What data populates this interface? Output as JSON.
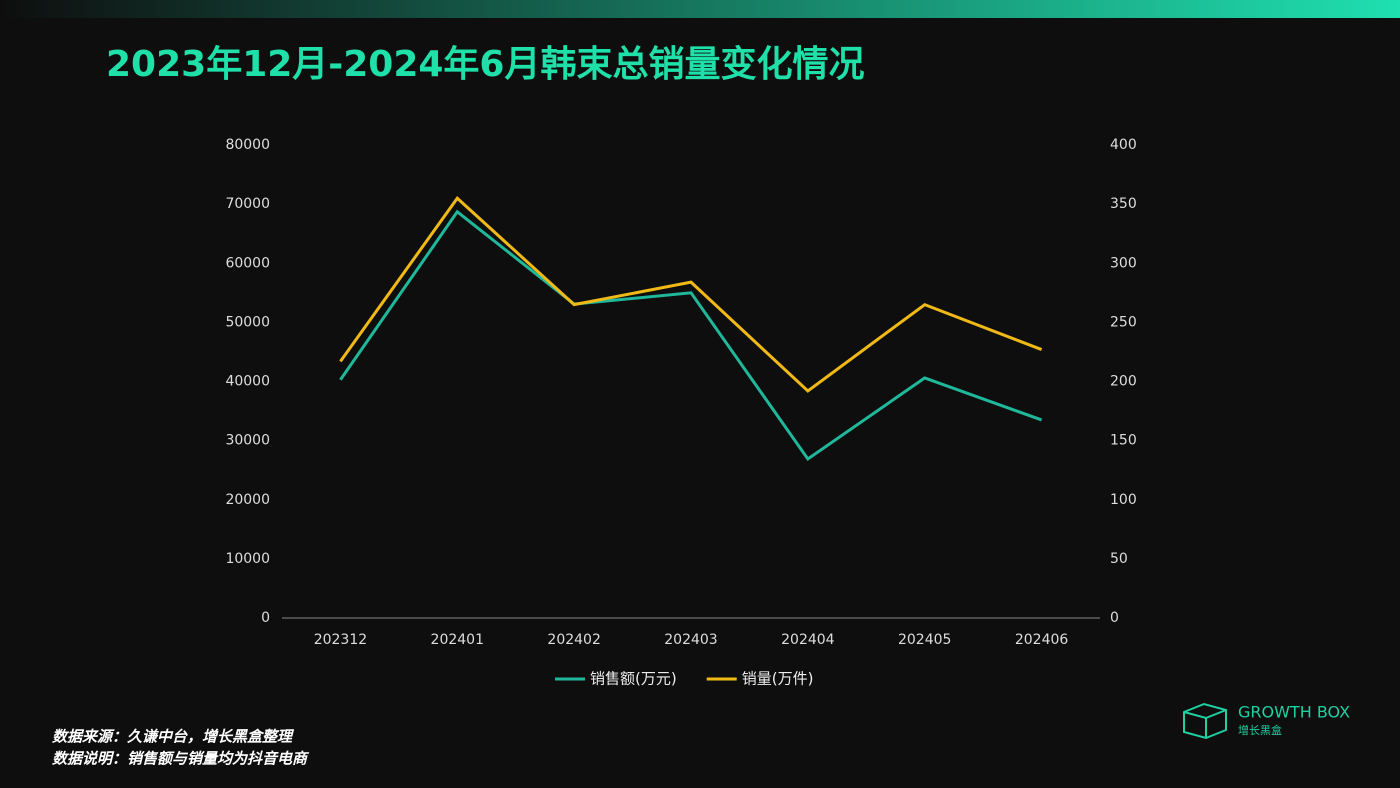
{
  "chart_data": {
    "type": "line",
    "title": "2023年12月-2024年6月韩束总销量变化情况",
    "categories": [
      "202312",
      "202401",
      "202402",
      "202403",
      "202404",
      "202405",
      "202406"
    ],
    "series": [
      {
        "name": "销售额(万元)",
        "color": "#1fb89a",
        "values": [
          40300,
          68700,
          53100,
          55000,
          26900,
          40600,
          33500
        ]
      },
      {
        "name": "销量(万件)",
        "color": "#f0b915",
        "axis": "y2",
        "values": [
          217,
          355,
          265,
          284,
          192,
          265,
          227
        ]
      }
    ],
    "ylim": [
      0,
      80000
    ],
    "yticks": [
      0,
      10000,
      20000,
      30000,
      40000,
      50000,
      60000,
      70000,
      80000
    ],
    "y2lim": [
      0,
      400
    ],
    "y2ticks": [
      0,
      50,
      100,
      150,
      200,
      250,
      300,
      350,
      400
    ],
    "legend": "bottom",
    "grid": false
  },
  "footer": {
    "source": "数据来源：久谦中台，增长黑盒整理",
    "note": "数据说明：销售额与销量均为抖音电商"
  },
  "logo": {
    "name": "GROWTH BOX",
    "subtitle": "增长黑盒"
  }
}
